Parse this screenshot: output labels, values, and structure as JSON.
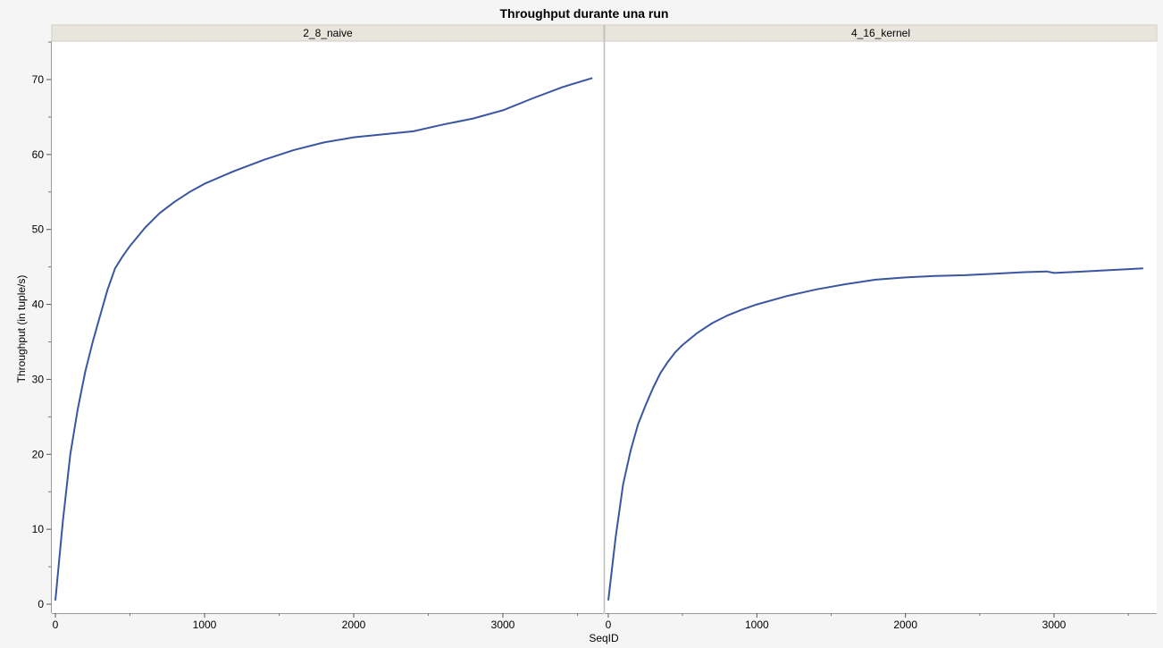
{
  "chart_data": {
    "type": "line",
    "title": "Throughput durante una run",
    "xlabel": "SeqID",
    "ylabel": "Throughput (in tuple/s)",
    "ylim": [
      0,
      75
    ],
    "yticks": [
      0,
      10,
      20,
      30,
      40,
      50,
      60,
      70
    ],
    "grid": false,
    "line_color": "#3a56a0",
    "strip_color": "#e8e6dc",
    "panels": [
      {
        "name": "2_8_naive",
        "xlim": [
          0,
          3750
        ],
        "xticks": [
          0,
          1000,
          2000,
          3000
        ],
        "x": [
          0,
          50,
          100,
          150,
          200,
          250,
          300,
          350,
          400,
          450,
          500,
          600,
          700,
          800,
          900,
          1000,
          1200,
          1400,
          1600,
          1800,
          2000,
          2200,
          2400,
          2600,
          2800,
          3000,
          3200,
          3400,
          3600
        ],
        "y": [
          0.5,
          11,
          20,
          26,
          31,
          35,
          38.5,
          42,
          44.8,
          46.4,
          47.8,
          50.2,
          52.2,
          53.7,
          55.0,
          56.1,
          57.8,
          59.3,
          60.6,
          61.6,
          62.3,
          62.7,
          63.1,
          64.0,
          64.8,
          65.9,
          67.5,
          69.0,
          70.2
        ]
      },
      {
        "name": "4_16_kernel",
        "xlim": [
          0,
          3700
        ],
        "xticks": [
          0,
          1000,
          2000,
          3000
        ],
        "x": [
          0,
          50,
          100,
          150,
          200,
          250,
          300,
          350,
          400,
          450,
          500,
          600,
          700,
          800,
          900,
          1000,
          1200,
          1400,
          1600,
          1800,
          2000,
          2200,
          2400,
          2600,
          2800,
          2950,
          3000,
          3200,
          3400,
          3600
        ],
        "y": [
          0.5,
          9,
          16,
          20.5,
          24,
          26.5,
          28.8,
          30.8,
          32.3,
          33.6,
          34.6,
          36.2,
          37.5,
          38.5,
          39.3,
          40.0,
          41.1,
          42.0,
          42.7,
          43.3,
          43.6,
          43.8,
          43.9,
          44.1,
          44.3,
          44.4,
          44.2,
          44.4,
          44.6,
          44.8
        ]
      }
    ]
  }
}
